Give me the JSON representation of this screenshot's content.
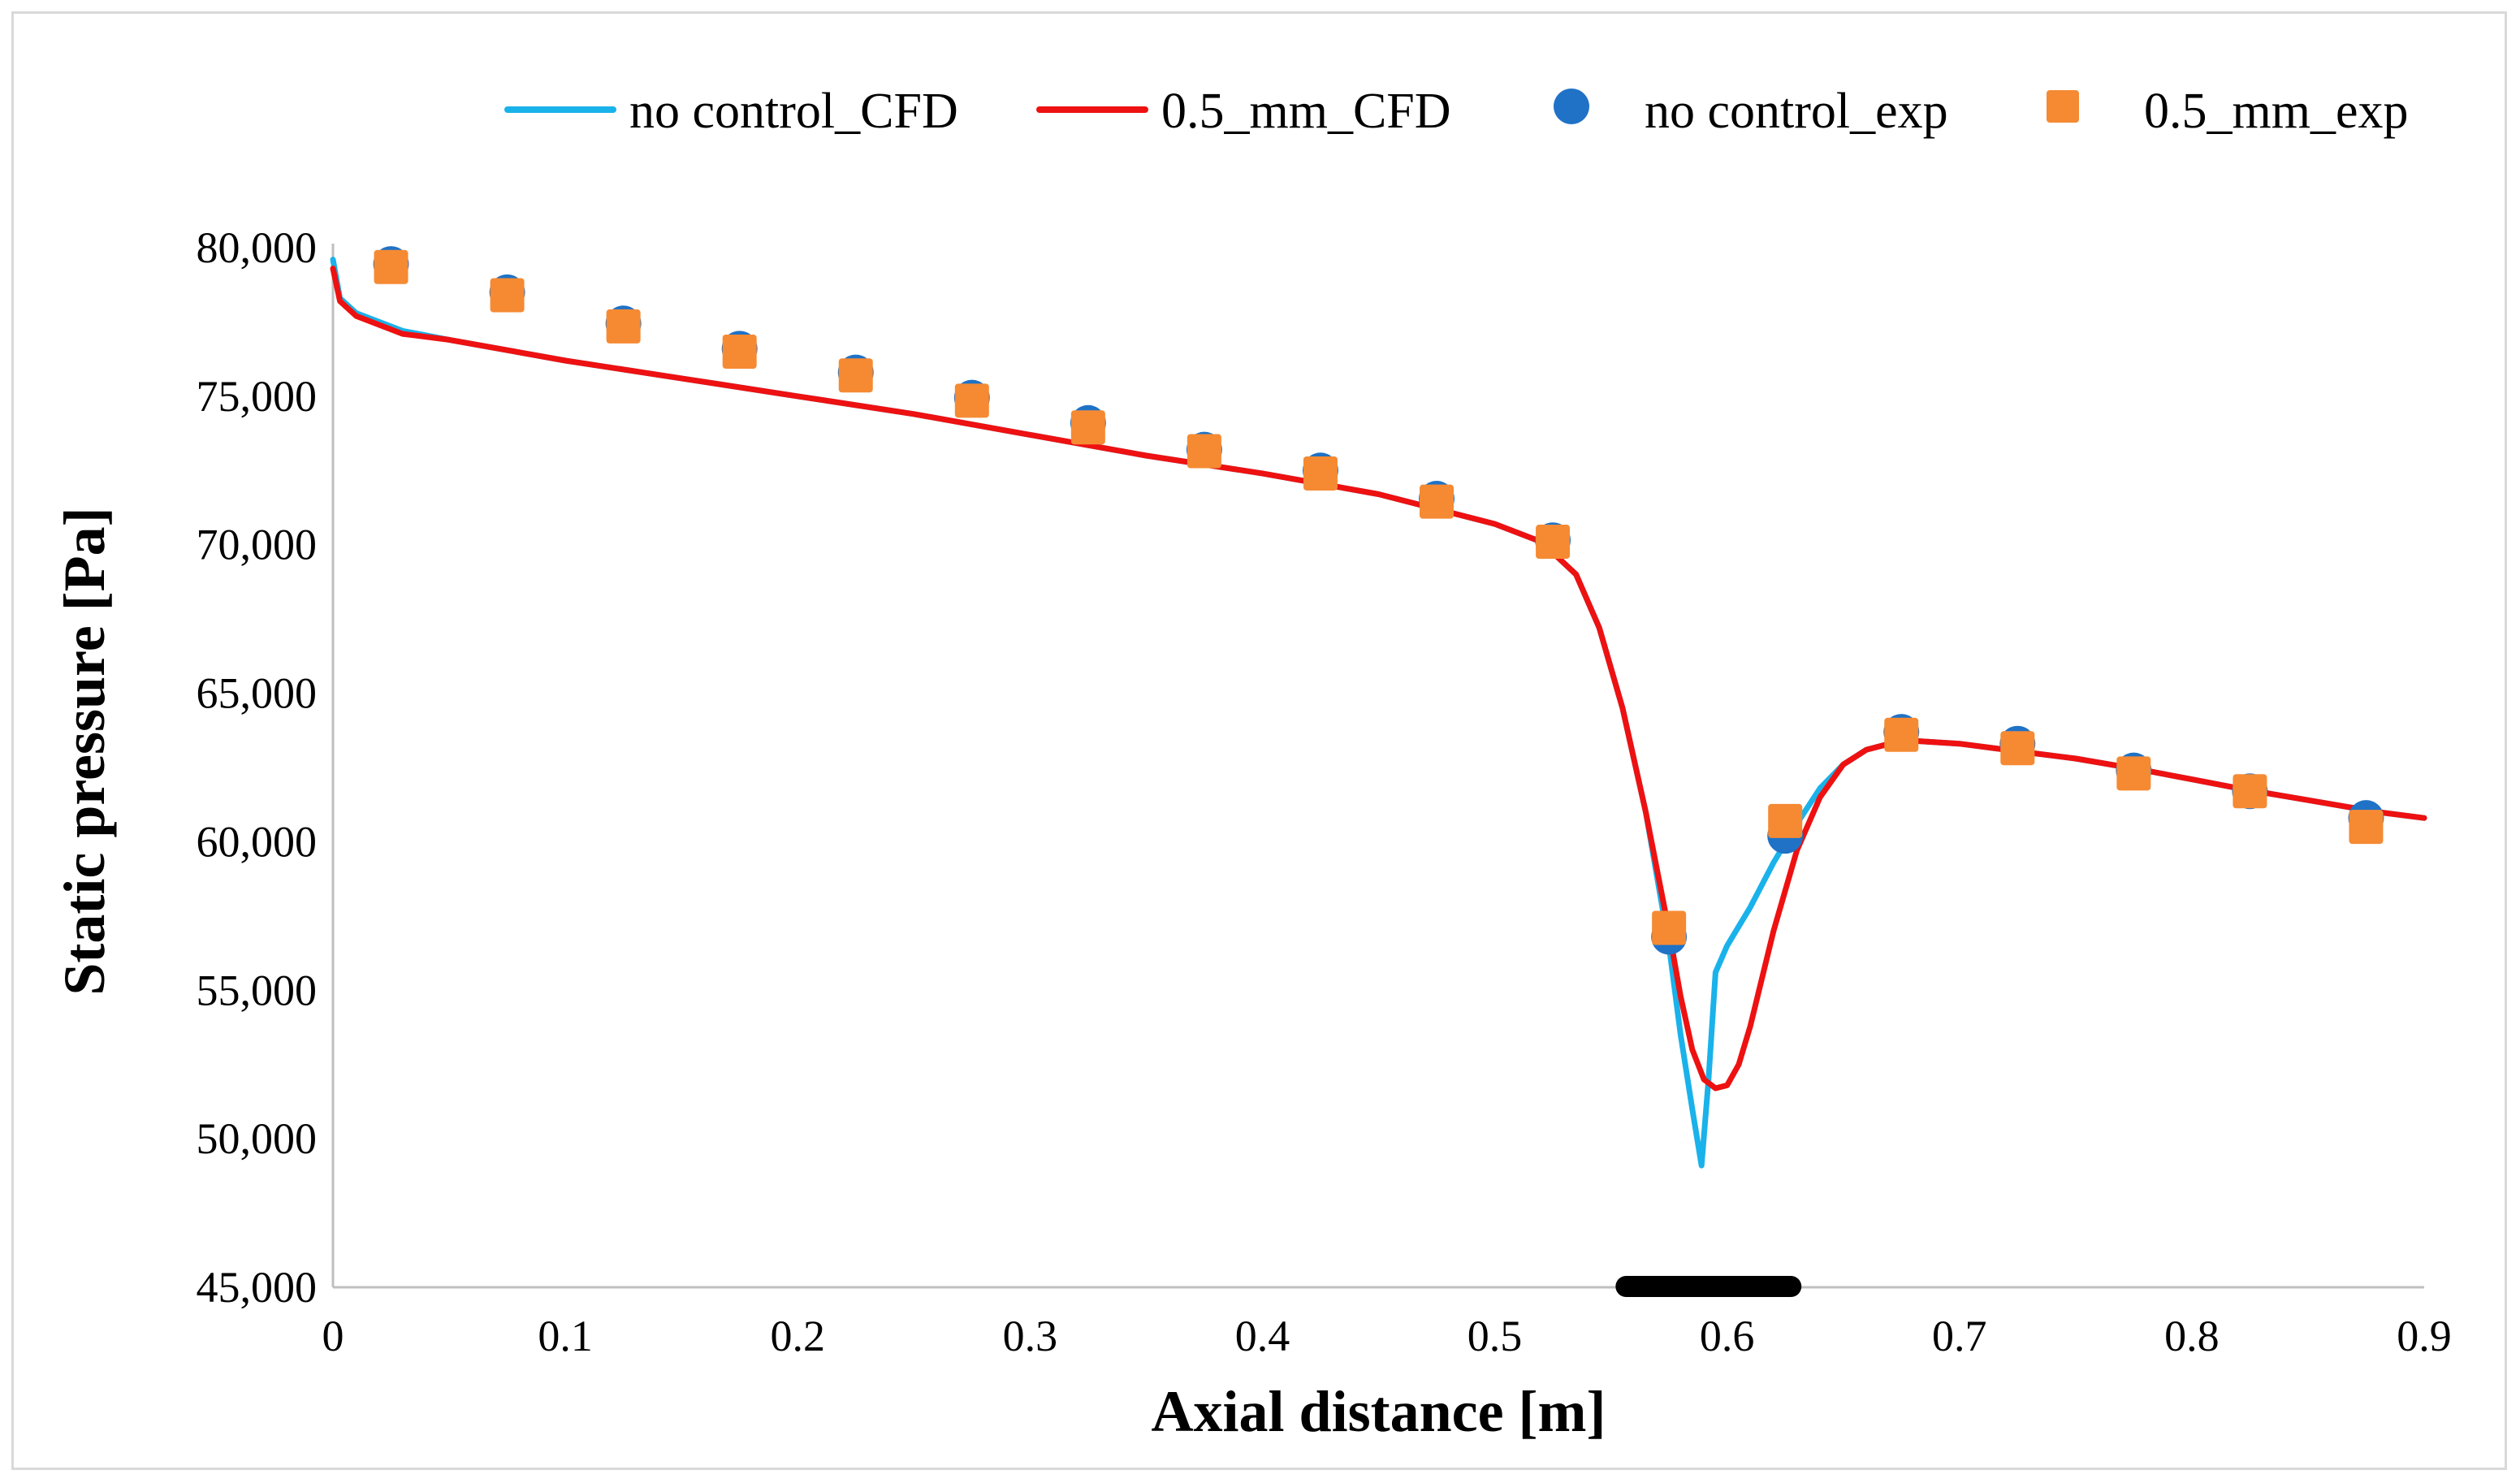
{
  "chart_data": {
    "type": "line",
    "xlabel": "Axial distance [m]",
    "ylabel": "Static pressure [Pa]",
    "xlim": [
      0,
      0.9
    ],
    "ylim": [
      45000,
      80000
    ],
    "x_ticks": [
      "0",
      "0.1",
      "0.2",
      "0.3",
      "0.4",
      "0.5",
      "0.6",
      "0.7",
      "0.8",
      "0.9"
    ],
    "y_ticks": [
      "45,000",
      "50,000",
      "55,000",
      "60,000",
      "65,000",
      "70,000",
      "75,000",
      "80,000"
    ],
    "grid": false,
    "legend_position": "top",
    "series": [
      {
        "name": "no control_CFD",
        "kind": "line",
        "color": "#1ab2ea",
        "x": [
          0,
          0.003,
          0.01,
          0.03,
          0.05,
          0.1,
          0.15,
          0.2,
          0.25,
          0.3,
          0.35,
          0.4,
          0.45,
          0.5,
          0.52,
          0.535,
          0.545,
          0.555,
          0.565,
          0.575,
          0.58,
          0.585,
          0.589,
          0.592,
          0.595,
          0.6,
          0.61,
          0.62,
          0.63,
          0.64,
          0.65,
          0.66,
          0.67,
          0.68,
          0.7,
          0.72,
          0.75,
          0.78,
          0.8,
          0.82,
          0.85,
          0.88,
          0.9
        ],
        "y": [
          79600,
          78300,
          77800,
          77200,
          76900,
          76200,
          75600,
          75000,
          74400,
          73700,
          73000,
          72400,
          71700,
          70700,
          70100,
          69000,
          67200,
          64500,
          61000,
          56500,
          53500,
          51000,
          49100,
          52000,
          55600,
          56500,
          57800,
          59300,
          60600,
          61800,
          62600,
          63100,
          63300,
          63400,
          63300,
          63100,
          62800,
          62400,
          62100,
          61800,
          61400,
          61000,
          60800
        ]
      },
      {
        "name": "0.5_mm_CFD",
        "kind": "line",
        "color": "#ee1111",
        "x": [
          0,
          0.003,
          0.01,
          0.03,
          0.05,
          0.1,
          0.15,
          0.2,
          0.25,
          0.3,
          0.35,
          0.4,
          0.45,
          0.5,
          0.52,
          0.535,
          0.545,
          0.555,
          0.565,
          0.575,
          0.58,
          0.585,
          0.59,
          0.595,
          0.6,
          0.605,
          0.61,
          0.62,
          0.63,
          0.64,
          0.65,
          0.66,
          0.67,
          0.68,
          0.7,
          0.72,
          0.75,
          0.78,
          0.8,
          0.82,
          0.85,
          0.88,
          0.9
        ],
        "y": [
          79300,
          78200,
          77700,
          77100,
          76900,
          76200,
          75600,
          75000,
          74400,
          73700,
          73000,
          72400,
          71700,
          70700,
          70100,
          69000,
          67200,
          64500,
          61000,
          57000,
          54800,
          53000,
          52000,
          51700,
          51800,
          52500,
          53800,
          57000,
          59700,
          61500,
          62600,
          63100,
          63300,
          63400,
          63300,
          63100,
          62800,
          62400,
          62100,
          61800,
          61400,
          61000,
          60800
        ]
      },
      {
        "name": "no control_exp",
        "kind": "marker-circle",
        "color": "#1f72c6",
        "x": [
          0.025,
          0.075,
          0.125,
          0.175,
          0.225,
          0.275,
          0.325,
          0.375,
          0.425,
          0.475,
          0.525,
          0.575,
          0.625,
          0.675,
          0.725,
          0.775,
          0.825,
          0.875
        ],
        "y": [
          79450,
          78500,
          77450,
          76600,
          75800,
          74950,
          74100,
          73200,
          72500,
          71550,
          70150,
          56800,
          60200,
          63700,
          63300,
          62400,
          61700,
          60800
        ]
      },
      {
        "name": "0.5_mm_exp",
        "kind": "marker-square",
        "color": "#f58a33",
        "x": [
          0.025,
          0.075,
          0.125,
          0.175,
          0.225,
          0.275,
          0.325,
          0.375,
          0.425,
          0.475,
          0.525,
          0.575,
          0.625,
          0.675,
          0.725,
          0.775,
          0.825,
          0.875
        ],
        "y": [
          79350,
          78400,
          77350,
          76500,
          75700,
          74850,
          73950,
          73150,
          72400,
          71450,
          70100,
          57100,
          60700,
          63600,
          63150,
          62300,
          61700,
          60500
        ]
      }
    ],
    "annotations": [
      {
        "kind": "bar-marker",
        "color": "#000000",
        "x_start": 0.552,
        "x_end": 0.632,
        "y": 45000
      }
    ]
  }
}
